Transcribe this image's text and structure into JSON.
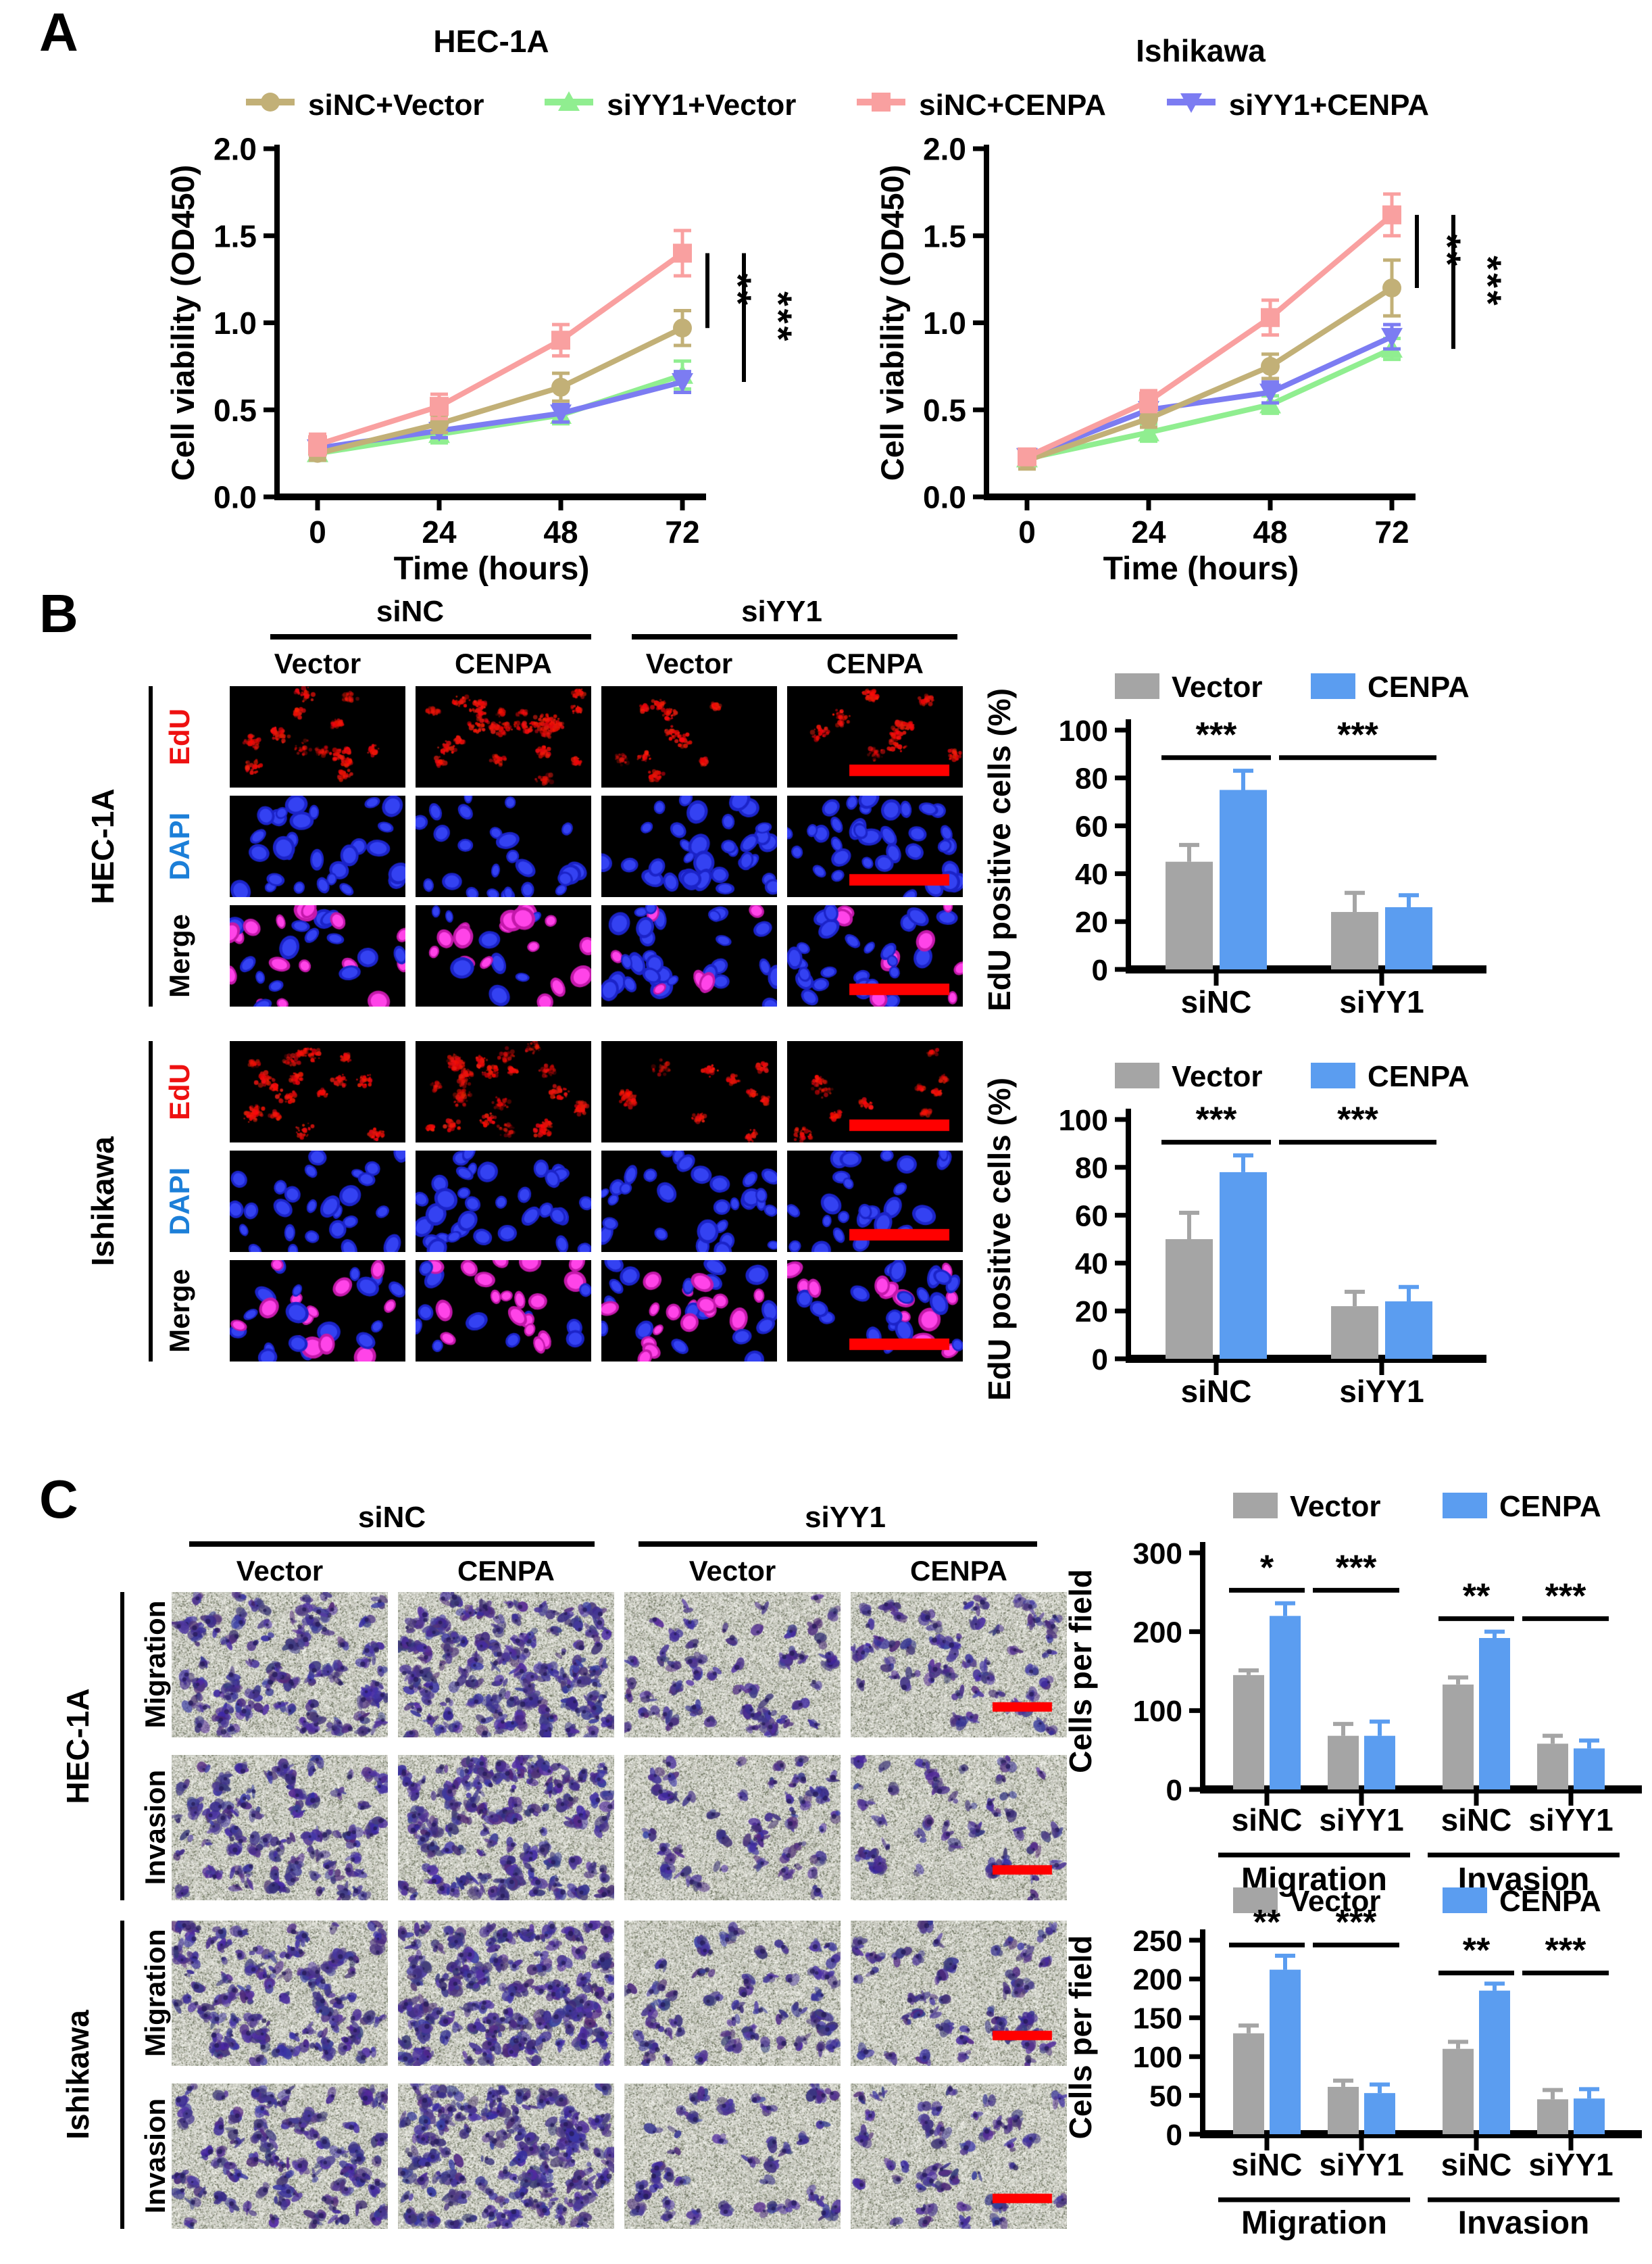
{
  "colors": {
    "khaki": "#C2B077",
    "green": "#90EE90",
    "salmon": "#F9A0A0",
    "violet": "#7C7CF2",
    "bar_gray": "#A5A5A5",
    "bar_blue": "#5B9DF0",
    "edu_red": "#EE1111",
    "dapi_blue": "#1C7FD8",
    "merge_black": "#000000",
    "scalebar_red": "#FF0000"
  },
  "panel_a": {
    "label": "A",
    "legend": [
      {
        "label": "siNC+Vector",
        "marker": "circle",
        "color": "#C2B077"
      },
      {
        "label": "siYY1+Vector",
        "marker": "triangle-up",
        "color": "#90EE90"
      },
      {
        "label": "siNC+CENPA",
        "marker": "square",
        "color": "#F9A0A0"
      },
      {
        "label": "siYY1+CENPA",
        "marker": "triangle-down",
        "color": "#7C7CF2"
      }
    ],
    "charts": [
      {
        "title": "HEC-1A",
        "ylabel": "Cell viability (OD450)",
        "xlabel": "Time (hours)",
        "x": [
          0,
          24,
          48,
          72
        ],
        "ylim": [
          0,
          2.0
        ],
        "ytick_step": 0.5,
        "series": [
          {
            "name": "siNC+Vector",
            "marker": "circle",
            "color": "#C2B077",
            "values": [
              0.25,
              0.42,
              0.63,
              0.97
            ],
            "errors": [
              0.04,
              0.05,
              0.08,
              0.1
            ]
          },
          {
            "name": "siYY1+Vector",
            "marker": "triangle-up",
            "color": "#90EE90",
            "values": [
              0.25,
              0.36,
              0.47,
              0.7
            ],
            "errors": [
              0.03,
              0.05,
              0.05,
              0.08
            ]
          },
          {
            "name": "siNC+CENPA",
            "marker": "square",
            "color": "#F9A0A0",
            "values": [
              0.3,
              0.52,
              0.9,
              1.4
            ],
            "errors": [
              0.06,
              0.07,
              0.09,
              0.13
            ]
          },
          {
            "name": "siYY1+CENPA",
            "marker": "triangle-down",
            "color": "#7C7CF2",
            "values": [
              0.28,
              0.38,
              0.48,
              0.66
            ],
            "errors": [
              0.04,
              0.04,
              0.05,
              0.06
            ]
          }
        ],
        "significance": [
          {
            "label": "**",
            "from": "siNC+CENPA",
            "to": "siNC+Vector"
          },
          {
            "label": "***",
            "from": "siNC+CENPA",
            "to": "siYY1+CENPA"
          }
        ]
      },
      {
        "title": "Ishikawa",
        "ylabel": "Cell viability (OD450)",
        "xlabel": "Time (hours)",
        "x": [
          0,
          24,
          48,
          72
        ],
        "ylim": [
          0,
          2.0
        ],
        "ytick_step": 0.5,
        "series": [
          {
            "name": "siNC+Vector",
            "marker": "circle",
            "color": "#C2B077",
            "values": [
              0.21,
              0.45,
              0.75,
              1.2
            ],
            "errors": [
              0.05,
              0.05,
              0.07,
              0.16
            ]
          },
          {
            "name": "siYY1+Vector",
            "marker": "triangle-up",
            "color": "#90EE90",
            "values": [
              0.22,
              0.37,
              0.53,
              0.85
            ],
            "errors": [
              0.04,
              0.05,
              0.05,
              0.06
            ]
          },
          {
            "name": "siNC+CENPA",
            "marker": "square",
            "color": "#F9A0A0",
            "values": [
              0.23,
              0.55,
              1.03,
              1.62
            ],
            "errors": [
              0.04,
              0.06,
              0.1,
              0.12
            ]
          },
          {
            "name": "siYY1+CENPA",
            "marker": "triangle-down",
            "color": "#7C7CF2",
            "values": [
              0.23,
              0.5,
              0.6,
              0.92
            ],
            "errors": [
              0.04,
              0.05,
              0.06,
              0.07
            ]
          }
        ],
        "significance": [
          {
            "label": "**",
            "from": "siNC+CENPA",
            "to": "siNC+Vector"
          },
          {
            "label": "***",
            "from": "siNC+CENPA",
            "to": "siYY1+Vector"
          }
        ]
      }
    ]
  },
  "panel_b": {
    "label": "B",
    "group_headers": [
      "siNC",
      "siYY1"
    ],
    "column_headers": [
      "Vector",
      "CENPA",
      "Vector",
      "CENPA"
    ],
    "cell_lines": [
      {
        "name": "HEC-1A",
        "rows": [
          {
            "label": "EdU",
            "color": "#EE1111"
          },
          {
            "label": "DAPI",
            "color": "#1C7FD8"
          },
          {
            "label": "Merge",
            "color": "#000000"
          }
        ]
      },
      {
        "name": "Ishikawa",
        "rows": [
          {
            "label": "EdU",
            "color": "#EE1111"
          },
          {
            "label": "DAPI",
            "color": "#1C7FD8"
          },
          {
            "label": "Merge",
            "color": "#000000"
          }
        ]
      }
    ],
    "charts": [
      {
        "cell_line": "HEC-1A",
        "ylabel": "EdU positive cells (%)",
        "ylim": [
          0,
          100
        ],
        "ytick_step": 20,
        "legend": [
          {
            "label": "Vector",
            "color": "#A5A5A5"
          },
          {
            "label": "CENPA",
            "color": "#5B9DF0"
          }
        ],
        "categories": [
          "siNC",
          "siYY1"
        ],
        "series": [
          {
            "name": "Vector",
            "values": [
              45,
              24
            ],
            "errors": [
              7,
              8
            ]
          },
          {
            "name": "CENPA",
            "values": [
              75,
              26
            ],
            "errors": [
              8,
              5
            ]
          }
        ],
        "significance": [
          "***",
          "***"
        ]
      },
      {
        "cell_line": "Ishikawa",
        "ylabel": "EdU positive cells (%)",
        "ylim": [
          0,
          100
        ],
        "ytick_step": 20,
        "legend": [
          {
            "label": "Vector",
            "color": "#A5A5A5"
          },
          {
            "label": "CENPA",
            "color": "#5B9DF0"
          }
        ],
        "categories": [
          "siNC",
          "siYY1"
        ],
        "series": [
          {
            "name": "Vector",
            "values": [
              50,
              22
            ],
            "errors": [
              11,
              6
            ]
          },
          {
            "name": "CENPA",
            "values": [
              78,
              24
            ],
            "errors": [
              7,
              6
            ]
          }
        ],
        "significance": [
          "***",
          "***"
        ]
      }
    ]
  },
  "panel_c": {
    "label": "C",
    "group_headers": [
      "siNC",
      "siYY1"
    ],
    "column_headers": [
      "Vector",
      "CENPA",
      "Vector",
      "CENPA"
    ],
    "cell_lines": [
      {
        "name": "HEC-1A",
        "rows": [
          {
            "label": "Migration"
          },
          {
            "label": "Invasion"
          }
        ]
      },
      {
        "name": "Ishikawa",
        "rows": [
          {
            "label": "Migration"
          },
          {
            "label": "Invasion"
          }
        ]
      }
    ],
    "charts": [
      {
        "cell_line": "HEC-1A",
        "ylabel": "Cells per field",
        "ylim": [
          0,
          300
        ],
        "ytick_step": 100,
        "legend": [
          {
            "label": "Vector",
            "color": "#A5A5A5"
          },
          {
            "label": "CENPA",
            "color": "#5B9DF0"
          }
        ],
        "groups": [
          {
            "label": "Migration",
            "categories": [
              "siNC",
              "siYY1"
            ],
            "series": [
              {
                "name": "Vector",
                "values": [
                  145,
                  68
                ],
                "errors": [
                  6,
                  15
                ]
              },
              {
                "name": "CENPA",
                "values": [
                  220,
                  68
                ],
                "errors": [
                  16,
                  18
                ]
              }
            ],
            "significance": [
              "*",
              "***"
            ]
          },
          {
            "label": "Invasion",
            "categories": [
              "siNC",
              "siYY1"
            ],
            "series": [
              {
                "name": "Vector",
                "values": [
                  133,
                  58
                ],
                "errors": [
                  9,
                  10
                ]
              },
              {
                "name": "CENPA",
                "values": [
                  192,
                  52
                ],
                "errors": [
                  8,
                  10
                ]
              }
            ],
            "significance": [
              "**",
              "***"
            ]
          }
        ]
      },
      {
        "cell_line": "Ishikawa",
        "ylabel": "Cells per field",
        "ylim": [
          0,
          250
        ],
        "ytick_step": 50,
        "legend": [
          {
            "label": "Vector",
            "color": "#A5A5A5"
          },
          {
            "label": "CENPA",
            "color": "#5B9DF0"
          }
        ],
        "groups": [
          {
            "label": "Migration",
            "categories": [
              "siNC",
              "siYY1"
            ],
            "series": [
              {
                "name": "Vector",
                "values": [
                  130,
                  61
                ],
                "errors": [
                  10,
                  8
                ]
              },
              {
                "name": "CENPA",
                "values": [
                  212,
                  53
                ],
                "errors": [
                  18,
                  11
                ]
              }
            ],
            "significance": [
              "**",
              "***"
            ]
          },
          {
            "label": "Invasion",
            "categories": [
              "siNC",
              "siYY1"
            ],
            "series": [
              {
                "name": "Vector",
                "values": [
                  110,
                  45
                ],
                "errors": [
                  9,
                  12
                ]
              },
              {
                "name": "CENPA",
                "values": [
                  185,
                  46
                ],
                "errors": [
                  9,
                  12
                ]
              }
            ],
            "significance": [
              "**",
              "***"
            ]
          }
        ]
      }
    ]
  }
}
